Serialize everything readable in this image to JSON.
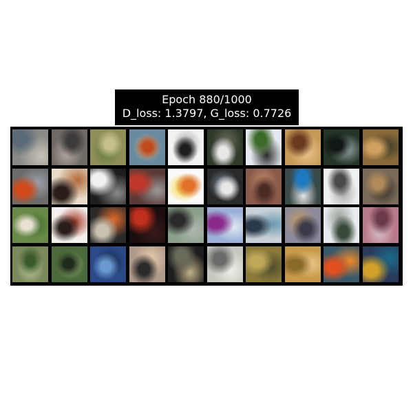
{
  "title": {
    "line1": "Epoch 880/1000",
    "line2": "D_loss: 1.3797, G_loss: 0.7726"
  },
  "grid": {
    "rows": 4,
    "cols": 10,
    "background": "#000000",
    "tiles": [
      {
        "bg": "#8a8a86",
        "a": "#5b6a78",
        "b": "#c7c2b8"
      },
      {
        "bg": "#6f6a66",
        "a": "#3d3a3a",
        "b": "#b5a9a0"
      },
      {
        "bg": "#8f8f5a",
        "a": "#c8c08a",
        "b": "#5f7a3a"
      },
      {
        "bg": "#6a8aa0",
        "a": "#c0491e",
        "b": "#e0c07a"
      },
      {
        "bg": "#f2f2f2",
        "a": "#1e1e1e",
        "b": "#9a9a9a"
      },
      {
        "bg": "#2e3a2a",
        "a": "#e8e8e8",
        "b": "#6a6a5a"
      },
      {
        "bg": "#e6eaf0",
        "a": "#3c6a2a",
        "b": "#2a2a2a"
      },
      {
        "bg": "#c89a58",
        "a": "#6a3a1e",
        "b": "#e8c48a"
      },
      {
        "bg": "#253528",
        "a": "#101814",
        "b": "#9aa6a8"
      },
      {
        "bg": "#8a6a38",
        "a": "#d0a060",
        "b": "#3a3a2a"
      },
      {
        "bg": "#6b6b6b",
        "a": "#d04a1a",
        "b": "#9aa0a8"
      },
      {
        "bg": "#e8dcc8",
        "a": "#2a1e1a",
        "b": "#b06a3a"
      },
      {
        "bg": "#1e1e1e",
        "a": "#f0f0f0",
        "b": "#8a8a8a"
      },
      {
        "bg": "#5a3a38",
        "a": "#c0382a",
        "b": "#9a9a9a"
      },
      {
        "bg": "#fafafa",
        "a": "#e0702a",
        "b": "#f0d02a"
      },
      {
        "bg": "#2a2a2a",
        "a": "#e8e8e8",
        "b": "#7a8a9a"
      },
      {
        "bg": "#8a5a4a",
        "a": "#4a2a24",
        "b": "#c08a6a"
      },
      {
        "bg": "#3a4a4a",
        "a": "#1e7ac0",
        "b": "#e8e8e8"
      },
      {
        "bg": "#f0f0f0",
        "a": "#4a4a4a",
        "b": "#a8a8a8"
      },
      {
        "bg": "#7a6a5a",
        "a": "#b08a5a",
        "b": "#2a2a24"
      },
      {
        "bg": "#6a8a4a",
        "a": "#e8e0d0",
        "b": "#3a6a2a"
      },
      {
        "bg": "#f4f0ec",
        "a": "#2a1e1a",
        "b": "#a03020"
      },
      {
        "bg": "#2a2a2a",
        "a": "#c8c0b0",
        "b": "#e06a2a"
      },
      {
        "bg": "#1a0e0e",
        "a": "#c0301e",
        "b": "#3a1a1a"
      },
      {
        "bg": "#8aa08a",
        "a": "#2a2a2a",
        "b": "#b0b8b0"
      },
      {
        "bg": "#9ab0d8",
        "a": "#8a2a8a",
        "b": "#e0e8f0"
      },
      {
        "bg": "#c8d0d8",
        "a": "#2a3a4a",
        "b": "#6a9ab0"
      },
      {
        "bg": "#8a8a9a",
        "a": "#3a3a4a",
        "b": "#c09a6a"
      },
      {
        "bg": "#e8ecf0",
        "a": "#3a4a3a",
        "b": "#9aa09a"
      },
      {
        "bg": "#b87a8a",
        "a": "#6a3a4a",
        "b": "#d8c0c8"
      },
      {
        "bg": "#7a8a5a",
        "a": "#3a5a2a",
        "b": "#c0c8a0"
      },
      {
        "bg": "#4a6a3a",
        "a": "#1e2a1a",
        "b": "#9ab07a"
      },
      {
        "bg": "#2a4a8a",
        "a": "#6a9ad0",
        "b": "#1a2a4a"
      },
      {
        "bg": "#b09a8a",
        "a": "#2a2a2a",
        "b": "#e8d0b0"
      },
      {
        "bg": "#1e1e1e",
        "a": "#6a6a5a",
        "b": "#c0b08a"
      },
      {
        "bg": "#c8c8c0",
        "a": "#6a6a6a",
        "b": "#f0f0ea"
      },
      {
        "bg": "#8a7a3a",
        "a": "#c0a85a",
        "b": "#4a4a2a"
      },
      {
        "bg": "#c89a4a",
        "a": "#8a6a2a",
        "b": "#e8c88a"
      },
      {
        "bg": "#3a5a6a",
        "a": "#e0501e",
        "b": "#f08a2a"
      },
      {
        "bg": "#2a3a5a",
        "a": "#d0a02a",
        "b": "#1a6a8a"
      }
    ]
  }
}
